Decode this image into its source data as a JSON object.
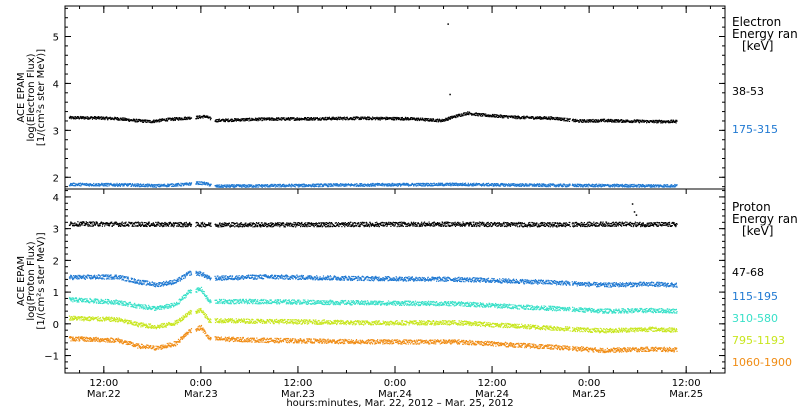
{
  "chart_data": [
    {
      "type": "scatter",
      "panel": "electron",
      "ylabel_lines": [
        "ACE EPAM",
        "log(Electron Flux)",
        "[1/(cm²s ster MeV)]"
      ],
      "ylim": [
        1.75,
        5.65
      ],
      "yticks": [
        2,
        3,
        4,
        5
      ],
      "tick_labels": [
        "2",
        "3",
        "4",
        "5"
      ],
      "legend_title": [
        "Electron",
        "Energy ran",
        "[keV]"
      ],
      "series": [
        {
          "name": "38-53",
          "color": "#000000",
          "base": 3.25,
          "points": [
            [
              0.0,
              3.28
            ],
            [
              0.12,
              3.28
            ],
            [
              0.25,
              3.26
            ],
            [
              0.34,
              3.22
            ],
            [
              0.42,
              3.2
            ],
            [
              0.5,
              3.24
            ],
            [
              0.66,
              3.29
            ],
            [
              0.68,
              3.3
            ],
            [
              0.7,
              3.31
            ],
            [
              0.75,
              3.22
            ],
            [
              0.9,
              3.24
            ],
            [
              1.0,
              3.25
            ],
            [
              1.25,
              3.26
            ],
            [
              1.5,
              3.27
            ],
            [
              1.75,
              3.26
            ],
            [
              1.92,
              3.22
            ],
            [
              1.98,
              3.3
            ],
            [
              2.05,
              3.38
            ],
            [
              2.12,
              3.34
            ],
            [
              2.3,
              3.29
            ],
            [
              2.5,
              3.27
            ],
            [
              2.62,
              3.21
            ],
            [
              2.75,
              3.22
            ],
            [
              3.0,
              3.2
            ],
            [
              3.25,
              3.2
            ],
            [
              3.45,
              3.19
            ]
          ]
        },
        {
          "name": "175-315",
          "color": "#1e78d2",
          "base": 1.84,
          "points": [
            [
              0.0,
              1.86
            ],
            [
              0.3,
              1.85
            ],
            [
              0.45,
              1.83
            ],
            [
              0.6,
              1.86
            ],
            [
              0.66,
              1.89
            ],
            [
              0.7,
              1.88
            ],
            [
              0.75,
              1.82
            ],
            [
              1.0,
              1.83
            ],
            [
              1.5,
              1.85
            ],
            [
              2.0,
              1.86
            ],
            [
              2.5,
              1.84
            ],
            [
              3.0,
              1.83
            ],
            [
              3.45,
              1.83
            ]
          ]
        }
      ],
      "spikes": [
        [
          1.95,
          5.28
        ],
        [
          1.96,
          3.78
        ]
      ]
    },
    {
      "type": "scatter",
      "panel": "proton",
      "ylabel_lines": [
        "ACE EPAM",
        "log(Proton Flux)",
        "[1/(cm²s ster MeV)]"
      ],
      "ylim": [
        -1.55,
        4.25
      ],
      "yticks": [
        -1,
        0,
        1,
        2,
        3,
        4
      ],
      "tick_labels": [
        "−1",
        "0",
        "1",
        "2",
        "3",
        "4"
      ],
      "legend_title": [
        "Proton",
        "Energy ran",
        "[keV]"
      ],
      "series": [
        {
          "name": "47-68",
          "color": "#000000",
          "points": [
            [
              0.0,
              3.17
            ],
            [
              0.5,
              3.15
            ],
            [
              1.0,
              3.14
            ],
            [
              1.5,
              3.15
            ],
            [
              2.0,
              3.16
            ],
            [
              2.5,
              3.14
            ],
            [
              2.75,
              3.16
            ],
            [
              3.0,
              3.15
            ],
            [
              3.45,
              3.14
            ]
          ]
        },
        {
          "name": "115-195",
          "color": "#1e78d2",
          "points": [
            [
              0.0,
              1.48
            ],
            [
              0.25,
              1.5
            ],
            [
              0.35,
              1.35
            ],
            [
              0.45,
              1.25
            ],
            [
              0.55,
              1.35
            ],
            [
              0.62,
              1.62
            ],
            [
              0.68,
              1.6
            ],
            [
              0.72,
              1.45
            ],
            [
              1.0,
              1.5
            ],
            [
              1.5,
              1.45
            ],
            [
              2.0,
              1.42
            ],
            [
              2.5,
              1.32
            ],
            [
              2.75,
              1.24
            ],
            [
              3.0,
              1.27
            ],
            [
              3.25,
              1.2
            ],
            [
              3.45,
              1.18
            ]
          ]
        },
        {
          "name": "310-580",
          "color": "#38e0c8",
          "points": [
            [
              0.0,
              0.78
            ],
            [
              0.25,
              0.7
            ],
            [
              0.35,
              0.58
            ],
            [
              0.45,
              0.5
            ],
            [
              0.55,
              0.62
            ],
            [
              0.62,
              1.05
            ],
            [
              0.68,
              1.1
            ],
            [
              0.72,
              0.72
            ],
            [
              1.0,
              0.72
            ],
            [
              1.5,
              0.68
            ],
            [
              2.0,
              0.65
            ],
            [
              2.5,
              0.5
            ],
            [
              2.75,
              0.42
            ],
            [
              3.0,
              0.44
            ],
            [
              3.45,
              0.38
            ]
          ]
        },
        {
          "name": "795-1193",
          "color": "#c8e61e",
          "points": [
            [
              0.0,
              0.2
            ],
            [
              0.25,
              0.15
            ],
            [
              0.35,
              0.0
            ],
            [
              0.45,
              -0.08
            ],
            [
              0.55,
              0.05
            ],
            [
              0.62,
              0.38
            ],
            [
              0.68,
              0.45
            ],
            [
              0.72,
              0.12
            ],
            [
              1.0,
              0.1
            ],
            [
              1.5,
              0.05
            ],
            [
              2.0,
              0.05
            ],
            [
              2.5,
              -0.12
            ],
            [
              2.75,
              -0.2
            ],
            [
              3.0,
              -0.15
            ],
            [
              3.45,
              -0.25
            ]
          ]
        },
        {
          "name": "1060-1900",
          "color": "#f08c14",
          "points": [
            [
              0.0,
              -0.45
            ],
            [
              0.25,
              -0.5
            ],
            [
              0.35,
              -0.68
            ],
            [
              0.45,
              -0.75
            ],
            [
              0.55,
              -0.6
            ],
            [
              0.62,
              -0.2
            ],
            [
              0.68,
              -0.1
            ],
            [
              0.72,
              -0.45
            ],
            [
              1.0,
              -0.5
            ],
            [
              1.5,
              -0.55
            ],
            [
              2.0,
              -0.55
            ],
            [
              2.5,
              -0.72
            ],
            [
              2.75,
              -0.82
            ],
            [
              3.0,
              -0.78
            ],
            [
              3.45,
              -0.85
            ]
          ]
        }
      ],
      "spikes": [
        [
          2.9,
          3.8
        ],
        [
          2.91,
          3.55
        ],
        [
          2.92,
          3.45
        ]
      ]
    }
  ],
  "xaxis": {
    "title": "hours:minutes, Mar. 22, 2012 – Mar. 25, 2012",
    "ticks": [
      {
        "time": "12:00",
        "date": "Mar.22",
        "day": 0.5
      },
      {
        "time": "0:00",
        "date": "Mar.23",
        "day": 1.0
      },
      {
        "time": "12:00",
        "date": "Mar.23",
        "day": 1.5
      },
      {
        "time": "0:00",
        "date": "Mar.24",
        "day": 2.0
      },
      {
        "time": "12:00",
        "date": "Mar.24",
        "day": 2.5
      },
      {
        "time": "0:00",
        "date": "Mar.25",
        "day": 3.0
      },
      {
        "time": "12:00",
        "date": "Mar.25",
        "day": 3.5
      }
    ],
    "xlim_days": [
      0.3,
      3.7
    ],
    "data_start_day": 0.32,
    "data_end_day": 3.45,
    "gaps_days": [
      [
        0.95,
        0.97
      ],
      [
        1.05,
        1.07
      ],
      [
        2.9,
        2.91
      ]
    ]
  }
}
